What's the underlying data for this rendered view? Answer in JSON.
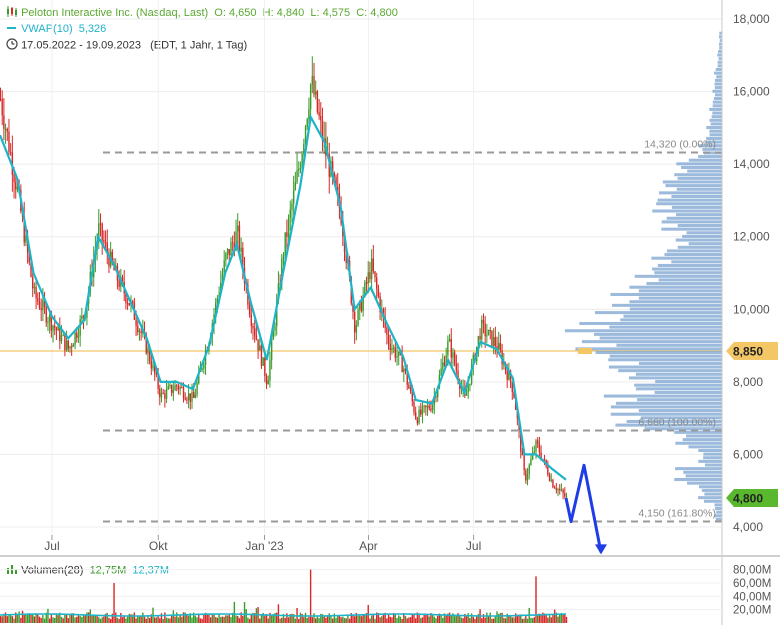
{
  "legend": {
    "title": "Peloton Interactive Inc. (Nasdaq, Last)",
    "open": "O: 4,650",
    "high": "H: 4,840",
    "low": "L: 4,575",
    "close": "C: 4,800",
    "vwap_label": "VWAP(10)",
    "vwap_value": "5,326",
    "date_range": "17.05.2022 - 19.09.2023",
    "range_info": "(EDT, 1 Jahr, 1 Tag)",
    "volume_label": "Volumen(28)",
    "volume_value1": "12,75M",
    "volume_value2": "12,37M"
  },
  "colors": {
    "up": "#3a9a2a",
    "down": "#d62828",
    "vwap": "#1fb3c8",
    "profile": "#7aa3d0",
    "price_line": "#f3c766",
    "price_badge": "#f3c766",
    "last_badge": "#5ab82e",
    "arrow": "#1e3ce8",
    "level": "#999999"
  },
  "chart_data": {
    "type": "line",
    "title": "Peloton Interactive Inc. (Nasdaq, Last)",
    "x_tick_labels": [
      "Jul",
      "Okt",
      "Jan '23",
      "Apr",
      "Jul"
    ],
    "y_tick_labels": [
      "4,000",
      "6,000",
      "8,000",
      "10,000",
      "12,000",
      "14,000",
      "16,000",
      "18,000"
    ],
    "ylim": [
      3500,
      18500
    ],
    "volume_tick_labels": [
      "80,00M",
      "60,00M",
      "40,00M",
      "20,00M"
    ],
    "volume_ylim": [
      0,
      90
    ],
    "price_series": [
      {
        "x": "2022-05-17",
        "y": 15.8
      },
      {
        "x": "2022-06-01",
        "y": 13.2
      },
      {
        "x": "2022-06-15",
        "y": 10.4
      },
      {
        "x": "2022-07-01",
        "y": 9.6
      },
      {
        "x": "2022-07-15",
        "y": 8.9
      },
      {
        "x": "2022-07-29",
        "y": 9.9
      },
      {
        "x": "2022-08-10",
        "y": 12.2
      },
      {
        "x": "2022-08-24",
        "y": 11.0
      },
      {
        "x": "2022-09-07",
        "y": 10.1
      },
      {
        "x": "2022-09-21",
        "y": 8.9
      },
      {
        "x": "2022-10-03",
        "y": 7.6
      },
      {
        "x": "2022-10-17",
        "y": 7.9
      },
      {
        "x": "2022-10-31",
        "y": 7.5
      },
      {
        "x": "2022-11-14",
        "y": 9.3
      },
      {
        "x": "2022-11-28",
        "y": 11.4
      },
      {
        "x": "2022-12-08",
        "y": 12.1
      },
      {
        "x": "2022-12-20",
        "y": 9.8
      },
      {
        "x": "2023-01-03",
        "y": 8.0
      },
      {
        "x": "2023-01-17",
        "y": 11.6
      },
      {
        "x": "2023-02-01",
        "y": 14.2
      },
      {
        "x": "2023-02-10",
        "y": 16.3
      },
      {
        "x": "2023-02-22",
        "y": 14.4
      },
      {
        "x": "2023-03-08",
        "y": 12.6
      },
      {
        "x": "2023-03-20",
        "y": 9.5
      },
      {
        "x": "2023-04-03",
        "y": 11.2
      },
      {
        "x": "2023-04-17",
        "y": 9.2
      },
      {
        "x": "2023-05-01",
        "y": 8.4
      },
      {
        "x": "2023-05-12",
        "y": 7.0
      },
      {
        "x": "2023-05-26",
        "y": 7.4
      },
      {
        "x": "2023-06-09",
        "y": 9.1
      },
      {
        "x": "2023-06-23",
        "y": 7.5
      },
      {
        "x": "2023-07-07",
        "y": 9.5
      },
      {
        "x": "2023-07-21",
        "y": 9.0
      },
      {
        "x": "2023-08-04",
        "y": 7.8
      },
      {
        "x": "2023-08-14",
        "y": 5.3
      },
      {
        "x": "2023-08-24",
        "y": 6.3
      },
      {
        "x": "2023-09-07",
        "y": 5.2
      },
      {
        "x": "2023-09-19",
        "y": 4.8
      }
    ],
    "vwap_series": [
      {
        "x": "2022-05-17",
        "y": 14.8
      },
      {
        "x": "2022-06-01",
        "y": 13.6
      },
      {
        "x": "2022-06-15",
        "y": 11.0
      },
      {
        "x": "2022-07-01",
        "y": 9.8
      },
      {
        "x": "2022-07-15",
        "y": 9.2
      },
      {
        "x": "2022-07-29",
        "y": 9.7
      },
      {
        "x": "2022-08-10",
        "y": 12.0
      },
      {
        "x": "2022-08-24",
        "y": 11.2
      },
      {
        "x": "2022-09-07",
        "y": 10.2
      },
      {
        "x": "2022-09-21",
        "y": 9.2
      },
      {
        "x": "2022-10-03",
        "y": 8.0
      },
      {
        "x": "2022-10-17",
        "y": 8.0
      },
      {
        "x": "2022-10-31",
        "y": 7.8
      },
      {
        "x": "2022-11-14",
        "y": 9.0
      },
      {
        "x": "2022-11-28",
        "y": 11.0
      },
      {
        "x": "2022-12-08",
        "y": 11.8
      },
      {
        "x": "2022-12-20",
        "y": 10.2
      },
      {
        "x": "2023-01-03",
        "y": 8.6
      },
      {
        "x": "2023-01-17",
        "y": 11.0
      },
      {
        "x": "2023-02-01",
        "y": 13.4
      },
      {
        "x": "2023-02-10",
        "y": 15.3
      },
      {
        "x": "2023-02-22",
        "y": 14.6
      },
      {
        "x": "2023-03-08",
        "y": 12.8
      },
      {
        "x": "2023-03-20",
        "y": 10.0
      },
      {
        "x": "2023-04-03",
        "y": 10.6
      },
      {
        "x": "2023-04-17",
        "y": 9.6
      },
      {
        "x": "2023-05-01",
        "y": 8.7
      },
      {
        "x": "2023-05-12",
        "y": 7.5
      },
      {
        "x": "2023-05-26",
        "y": 7.4
      },
      {
        "x": "2023-06-09",
        "y": 8.6
      },
      {
        "x": "2023-06-23",
        "y": 7.7
      },
      {
        "x": "2023-07-07",
        "y": 9.1
      },
      {
        "x": "2023-07-21",
        "y": 8.9
      },
      {
        "x": "2023-08-04",
        "y": 8.1
      },
      {
        "x": "2023-08-14",
        "y": 6.0
      },
      {
        "x": "2023-08-24",
        "y": 6.0
      },
      {
        "x": "2023-09-07",
        "y": 5.6
      },
      {
        "x": "2023-09-19",
        "y": 5.3
      }
    ],
    "levels": [
      {
        "label": "14,320 (0.00%)",
        "value": 14.32
      },
      {
        "label": "6,660 (100.00%)",
        "value": 6.66
      },
      {
        "label": "4,150 (161.80%)",
        "value": 4.15
      }
    ],
    "current_price": "8,850",
    "current_price_value": 8.85,
    "last_price": "4,800",
    "last_price_value": 4.8,
    "projection": [
      {
        "y": 4.8
      },
      {
        "y": 4.15
      },
      {
        "y": 5.7
      },
      {
        "y": 3.3
      }
    ],
    "volume_profile": [
      {
        "price": 4.4,
        "value": 0.05
      },
      {
        "price": 4.9,
        "value": 0.15
      },
      {
        "price": 5.4,
        "value": 0.3
      },
      {
        "price": 5.9,
        "value": 0.15
      },
      {
        "price": 6.4,
        "value": 0.3
      },
      {
        "price": 6.9,
        "value": 0.7
      },
      {
        "price": 7.4,
        "value": 0.75
      },
      {
        "price": 7.9,
        "value": 0.6
      },
      {
        "price": 8.4,
        "value": 0.75
      },
      {
        "price": 8.9,
        "value": 0.95
      },
      {
        "price": 9.4,
        "value": 1.0
      },
      {
        "price": 9.9,
        "value": 0.8
      },
      {
        "price": 10.4,
        "value": 0.7
      },
      {
        "price": 10.9,
        "value": 0.55
      },
      {
        "price": 11.4,
        "value": 0.45
      },
      {
        "price": 11.9,
        "value": 0.3
      },
      {
        "price": 12.4,
        "value": 0.4
      },
      {
        "price": 12.9,
        "value": 0.45
      },
      {
        "price": 13.4,
        "value": 0.4
      },
      {
        "price": 13.9,
        "value": 0.3
      },
      {
        "price": 14.4,
        "value": 0.15
      },
      {
        "price": 14.9,
        "value": 0.1
      },
      {
        "price": 15.4,
        "value": 0.08
      },
      {
        "price": 15.9,
        "value": 0.06
      },
      {
        "price": 16.4,
        "value": 0.05
      },
      {
        "price": 16.9,
        "value": 0.03
      },
      {
        "price": 17.4,
        "value": 0.02
      }
    ],
    "volume_spikes": [
      {
        "x": "2022-08-24",
        "y": 60
      },
      {
        "x": "2023-02-10",
        "y": 80
      },
      {
        "x": "2023-08-24",
        "y": 70
      }
    ],
    "grid": true,
    "legend_position": "top-left"
  }
}
